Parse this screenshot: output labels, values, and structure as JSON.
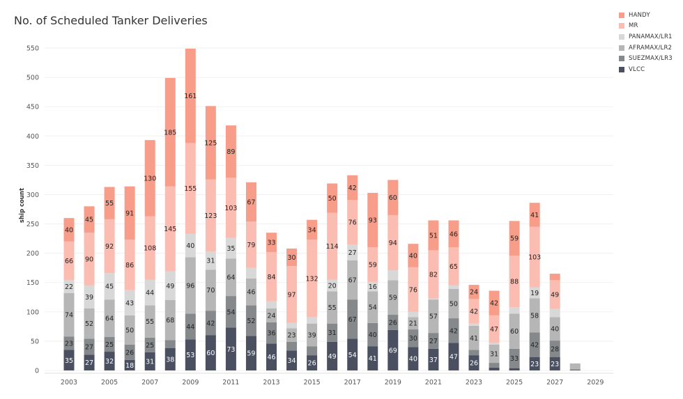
{
  "chart_data": {
    "type": "bar",
    "stacked": true,
    "title": "No. of Scheduled Tanker Deliveries",
    "xlabel": "",
    "ylabel": "ship count",
    "ylim": [
      0,
      560
    ],
    "yticks": [
      0,
      50,
      100,
      150,
      200,
      250,
      300,
      350,
      400,
      450,
      500,
      550
    ],
    "x_tick_labels": [
      "2003",
      "2005",
      "2007",
      "2009",
      "2011",
      "2013",
      "2015",
      "2017",
      "2019",
      "2021",
      "2023",
      "2025",
      "2027",
      "2029"
    ],
    "categories": [
      2003,
      2004,
      2005,
      2006,
      2007,
      2008,
      2009,
      2010,
      2011,
      2012,
      2013,
      2014,
      2015,
      2016,
      2017,
      2018,
      2019,
      2020,
      2021,
      2022,
      2023,
      2024,
      2025,
      2026,
      2027,
      2028
    ],
    "legend_position": "top-right",
    "series": [
      {
        "name": "VLCC",
        "color": "#4a5060",
        "values": [
          35,
          27,
          32,
          18,
          31,
          38,
          53,
          60,
          73,
          59,
          46,
          34,
          26,
          49,
          54,
          41,
          69,
          40,
          37,
          47,
          26,
          5,
          4,
          23,
          23,
          1
        ],
        "labels": [
          "35",
          "27",
          "32",
          "18",
          "31",
          "38",
          "53",
          "60",
          "73",
          "59",
          "46",
          "34",
          "26",
          "49",
          "54",
          "41",
          "69",
          "40",
          "37",
          "47",
          "26",
          "",
          "",
          "23",
          "23",
          ""
        ]
      },
      {
        "name": "SUEZMAX/LR3",
        "color": "#86898b",
        "values": [
          23,
          27,
          25,
          26,
          25,
          14,
          44,
          42,
          54,
          52,
          36,
          15,
          15,
          31,
          67,
          40,
          26,
          30,
          27,
          42,
          9,
          8,
          33,
          42,
          28,
          1
        ],
        "labels": [
          "23",
          "27",
          "25",
          "26",
          "25",
          "",
          "44",
          "42",
          "54",
          "52",
          "36",
          "",
          "",
          "31",
          "67",
          "40",
          "26",
          "30",
          "27",
          "42",
          "",
          "",
          "33",
          "42",
          "28",
          ""
        ]
      },
      {
        "name": "AFRAMAX/LR2",
        "color": "#b6b6b6",
        "values": [
          74,
          52,
          64,
          50,
          55,
          68,
          96,
          70,
          64,
          46,
          24,
          23,
          39,
          55,
          67,
          54,
          59,
          21,
          57,
          50,
          41,
          31,
          60,
          58,
          40,
          10
        ],
        "labels": [
          "74",
          "52",
          "64",
          "50",
          "55",
          "68",
          "96",
          "70",
          "64",
          "46",
          "24",
          "23",
          "39",
          "55",
          "67",
          "54",
          "59",
          "21",
          "57",
          "50",
          "41",
          "31",
          "60",
          "58",
          "40",
          ""
        ]
      },
      {
        "name": "PANAMAX/LR1",
        "color": "#d8d8d8",
        "values": [
          22,
          39,
          45,
          43,
          44,
          49,
          40,
          31,
          35,
          18,
          12,
          9,
          11,
          20,
          27,
          16,
          17,
          9,
          2,
          6,
          4,
          3,
          11,
          19,
          14,
          0
        ],
        "labels": [
          "22",
          "39",
          "45",
          "43",
          "44",
          "49",
          "40",
          "31",
          "35",
          "",
          "",
          "",
          "",
          "20",
          "27",
          "16",
          "",
          "",
          "",
          "",
          "",
          "",
          "",
          "19",
          "",
          ""
        ]
      },
      {
        "name": "MR",
        "color": "#fbbcb1",
        "values": [
          66,
          90,
          92,
          86,
          108,
          145,
          155,
          123,
          103,
          79,
          84,
          97,
          132,
          114,
          76,
          59,
          94,
          76,
          82,
          65,
          42,
          47,
          88,
          103,
          49,
          0
        ],
        "labels": [
          "66",
          "90",
          "92",
          "86",
          "108",
          "145",
          "155",
          "123",
          "103",
          "79",
          "84",
          "97",
          "132",
          "114",
          "76",
          "59",
          "94",
          "76",
          "82",
          "65",
          "42",
          "47",
          "88",
          "103",
          "49",
          ""
        ]
      },
      {
        "name": "HANDY",
        "color": "#f79d89",
        "values": [
          40,
          45,
          55,
          91,
          130,
          185,
          161,
          125,
          89,
          67,
          33,
          30,
          34,
          50,
          42,
          93,
          60,
          40,
          51,
          46,
          24,
          42,
          59,
          41,
          11,
          0
        ],
        "labels": [
          "40",
          "45",
          "55",
          "91",
          "130",
          "185",
          "161",
          "125",
          "89",
          "67",
          "33",
          "30",
          "34",
          "50",
          "42",
          "93",
          "60",
          "40",
          "51",
          "46",
          "24",
          "42",
          "59",
          "41",
          "",
          ""
        ]
      }
    ]
  }
}
